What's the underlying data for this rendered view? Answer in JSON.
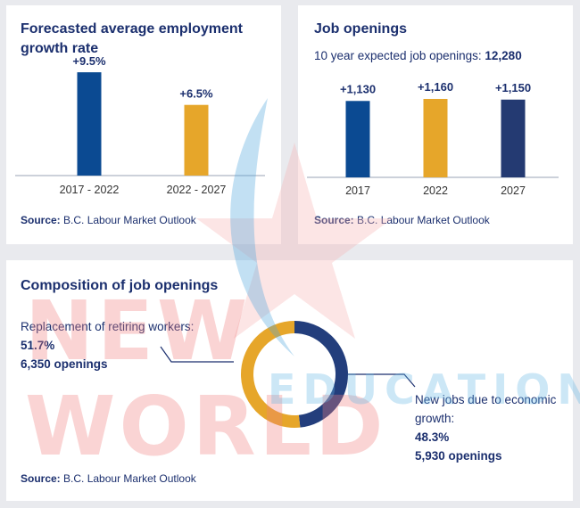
{
  "colors": {
    "navy": "#1b2f6e",
    "blue": "#0b4a92",
    "gold": "#e6a62a",
    "axis": "#9aa3b5"
  },
  "panel1": {
    "title_line1": "Forecasted average employment",
    "title_line2": "growth rate",
    "source_label": "Source:",
    "source_text": "B.C. Labour Market Outlook"
  },
  "panel2": {
    "title": "Job openings",
    "subtitle_text": "10 year expected job openings:",
    "subtitle_value": "12,280",
    "source_label": "Source:",
    "source_text": "B.C. Labour Market Outlook"
  },
  "panel3": {
    "title": "Composition of job openings",
    "left_label": "Replacement of retiring workers:",
    "left_pct": "51.7%",
    "left_count": "6,350 openings",
    "right_label_line1": "New jobs due to economic",
    "right_label_line2": "growth:",
    "right_pct": "48.3%",
    "right_count": "5,930 openings",
    "source_label": "Source:",
    "source_text": "B.C. Labour Market Outlook"
  },
  "watermark": {
    "line1": "NEW WORLD",
    "line2": "EDUCATION"
  },
  "chart_data": [
    {
      "type": "bar",
      "title": "Forecasted average employment growth rate",
      "categories": [
        "2017 - 2022",
        "2022 - 2027"
      ],
      "values": [
        9.5,
        6.5
      ],
      "data_labels": [
        "+9.5%",
        "+6.5%"
      ],
      "colors": [
        "#0b4a92",
        "#e6a62a"
      ],
      "ylim": [
        0,
        10
      ]
    },
    {
      "type": "bar",
      "title": "Job openings",
      "categories": [
        "2017",
        "2022",
        "2027"
      ],
      "values": [
        1130,
        1160,
        1150
      ],
      "data_labels": [
        "+1,130",
        "+1,160",
        "+1,150"
      ],
      "colors": [
        "#0b4a92",
        "#e6a62a",
        "#243a72"
      ],
      "ylim": [
        0,
        1160
      ]
    },
    {
      "type": "pie",
      "title": "Composition of job openings",
      "categories": [
        "Replacement of retiring workers",
        "New jobs due to economic growth"
      ],
      "values": [
        51.7,
        48.3
      ],
      "colors": [
        "#e6a62a",
        "#233e7c"
      ]
    }
  ]
}
